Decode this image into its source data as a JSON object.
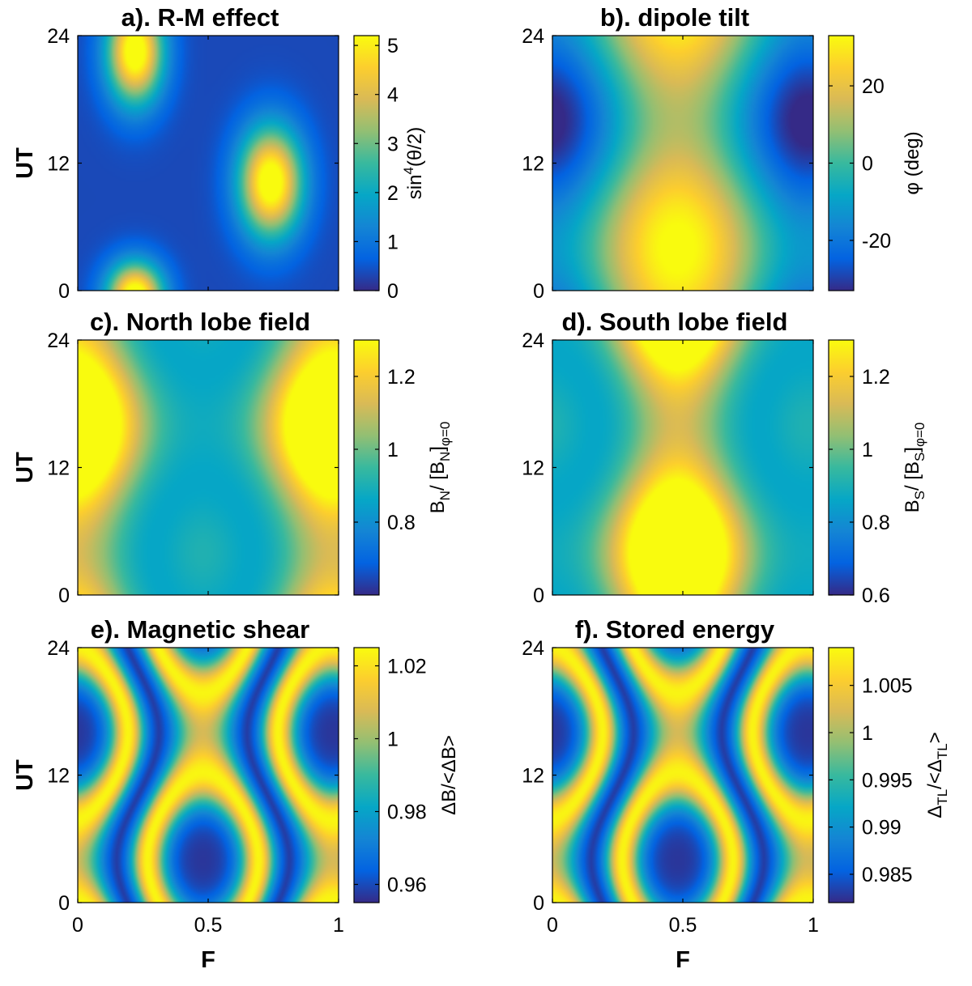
{
  "colors": {
    "parula": [
      "#352a87",
      "#0363e1",
      "#1485d4",
      "#06a7c6",
      "#38b99e",
      "#92bf73",
      "#d9ba56",
      "#fcce2e",
      "#f9fb0e"
    ]
  },
  "axes_text": {
    "ylabel": "UT",
    "xlabel": "F",
    "xticks": [
      "0",
      "0.5",
      "1"
    ],
    "yticks": [
      "0",
      "12",
      "24"
    ]
  },
  "chart_data": [
    {
      "id": "a",
      "type": "heatmap",
      "title": "a). R-M effect",
      "cbar_label": "sin<sup>4</sup>(θ/2)",
      "cbar_label_parts": [
        {
          "t": "sin"
        },
        {
          "t": "4",
          "sup": true
        },
        {
          "t": "(θ/2)"
        }
      ],
      "cbar_ticks": [
        "0",
        "1",
        "2",
        "3",
        "4",
        "5"
      ],
      "cbar_tick_values": [
        0,
        1,
        2,
        3,
        4,
        5
      ],
      "clim": [
        0,
        5.2
      ],
      "xlim": [
        0,
        1
      ],
      "ylim": [
        0,
        24
      ],
      "field": {
        "kind": "rm",
        "blobs": [
          {
            "x": 0.22,
            "y": 22.5,
            "sx": 0.075,
            "sy": 3.4,
            "amp": 5.4
          },
          {
            "x": 0.22,
            "y": -0.5,
            "sx": 0.075,
            "sy": 2.2,
            "amp": 5.4
          },
          {
            "x": 0.74,
            "y": 10.2,
            "sx": 0.085,
            "sy": 3.6,
            "amp": 5.4
          }
        ]
      }
    },
    {
      "id": "b",
      "type": "heatmap",
      "title": "b). dipole tilt",
      "cbar_label": "φ (deg)",
      "cbar_label_parts": [
        {
          "t": "φ (deg)"
        }
      ],
      "cbar_ticks": [
        "-20",
        "0",
        "20"
      ],
      "cbar_tick_values": [
        -20,
        0,
        20
      ],
      "clim": [
        -33,
        33
      ],
      "xlim": [
        0,
        1
      ],
      "ylim": [
        0,
        24
      ],
      "field": {
        "kind": "tilt",
        "a": 23.5,
        "b": 11.5
      }
    },
    {
      "id": "c",
      "type": "heatmap",
      "title": "c). North lobe field",
      "cbar_label": "B_N/ [B_N]_φ=0",
      "cbar_label_parts": [
        {
          "t": "B"
        },
        {
          "t": "N",
          "sub": true
        },
        {
          "t": "/ [B"
        },
        {
          "t": "N",
          "sub": true
        },
        {
          "t": "]"
        },
        {
          "t": "φ=0",
          "sub": true
        }
      ],
      "cbar_ticks": [
        "0.8",
        "1",
        "1.2"
      ],
      "cbar_tick_values": [
        0.8,
        1.0,
        1.2
      ],
      "clim": [
        0.6,
        1.3
      ],
      "xlim": [
        0,
        1
      ],
      "ylim": [
        0,
        24
      ],
      "field": {
        "kind": "lobe",
        "sign": -1,
        "center": 0.97,
        "gain": 0.0105
      }
    },
    {
      "id": "d",
      "type": "heatmap",
      "title": "d). South lobe field",
      "cbar_label": "B_S/ [B_S]_φ=0",
      "cbar_label_parts": [
        {
          "t": "B"
        },
        {
          "t": "S",
          "sub": true
        },
        {
          "t": "/ [B"
        },
        {
          "t": "S",
          "sub": true
        },
        {
          "t": "]"
        },
        {
          "t": "φ=0",
          "sub": true
        }
      ],
      "cbar_ticks": [
        "0.6",
        "0.8",
        "1",
        "1.2"
      ],
      "cbar_tick_values": [
        0.6,
        0.8,
        1.0,
        1.2
      ],
      "clim": [
        0.6,
        1.3
      ],
      "xlim": [
        0,
        1
      ],
      "ylim": [
        0,
        24
      ],
      "field": {
        "kind": "lobe",
        "sign": 1,
        "center": 0.97,
        "gain": 0.0105
      }
    },
    {
      "id": "e",
      "type": "heatmap",
      "title": "e). Magnetic shear",
      "cbar_label": "ΔB/<ΔB>",
      "cbar_label_parts": [
        {
          "t": "ΔB/<ΔB>"
        }
      ],
      "cbar_ticks": [
        "0.96",
        "0.98",
        "1",
        "1.02"
      ],
      "cbar_tick_values": [
        0.96,
        0.98,
        1.0,
        1.02
      ],
      "clim": [
        0.955,
        1.025
      ],
      "xlim": [
        0,
        1
      ],
      "ylim": [
        0,
        24
      ],
      "field": {
        "kind": "shear",
        "min": 0.955,
        "max": 1.024
      }
    },
    {
      "id": "f",
      "type": "heatmap",
      "title": "f). Stored energy",
      "cbar_label": "Δ_TL/<Δ_TL>",
      "cbar_label_parts": [
        {
          "t": "Δ"
        },
        {
          "t": "TL",
          "sub": true
        },
        {
          "t": "/<Δ"
        },
        {
          "t": "TL",
          "sub": true
        },
        {
          "t": ">"
        }
      ],
      "cbar_ticks": [
        "0.985",
        "0.99",
        "0.995",
        "1",
        "1.005"
      ],
      "cbar_tick_values": [
        0.985,
        0.99,
        0.995,
        1.0,
        1.005
      ],
      "clim": [
        0.982,
        1.009
      ],
      "xlim": [
        0,
        1
      ],
      "ylim": [
        0,
        24
      ],
      "field": {
        "kind": "shear",
        "min": 0.982,
        "max": 1.0085
      }
    }
  ]
}
